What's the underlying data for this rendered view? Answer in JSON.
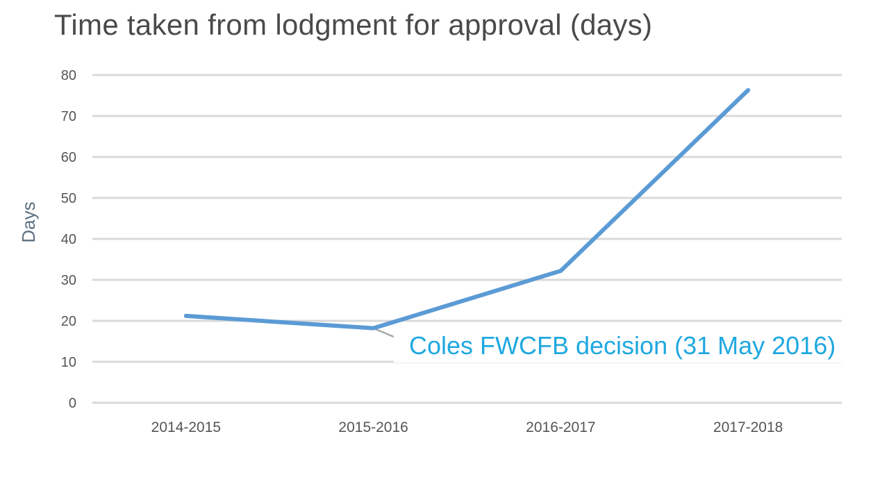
{
  "chart_data": {
    "type": "line",
    "title": "Time taken from lodgment for approval (days)",
    "xlabel": "",
    "ylabel": "Days",
    "categories": [
      "2014-2015",
      "2015-2016",
      "2016-2017",
      "2017-2018"
    ],
    "series": [
      {
        "values": [
          21.2,
          18.2,
          32.2,
          76.3
        ]
      }
    ],
    "ylim": [
      0,
      80
    ],
    "yticks": [
      0,
      10,
      20,
      30,
      40,
      50,
      60,
      70,
      80
    ],
    "grid": true,
    "legend": "none",
    "annotations": [
      {
        "text": "Coles FWCFB decision (31 May 2016)",
        "category": "2015-2016"
      }
    ],
    "colors": {
      "line": "#5b9bd5",
      "grid": "#d9d9d9",
      "annotation": "#1fa8e0",
      "leader": "#a6a6a6"
    }
  }
}
